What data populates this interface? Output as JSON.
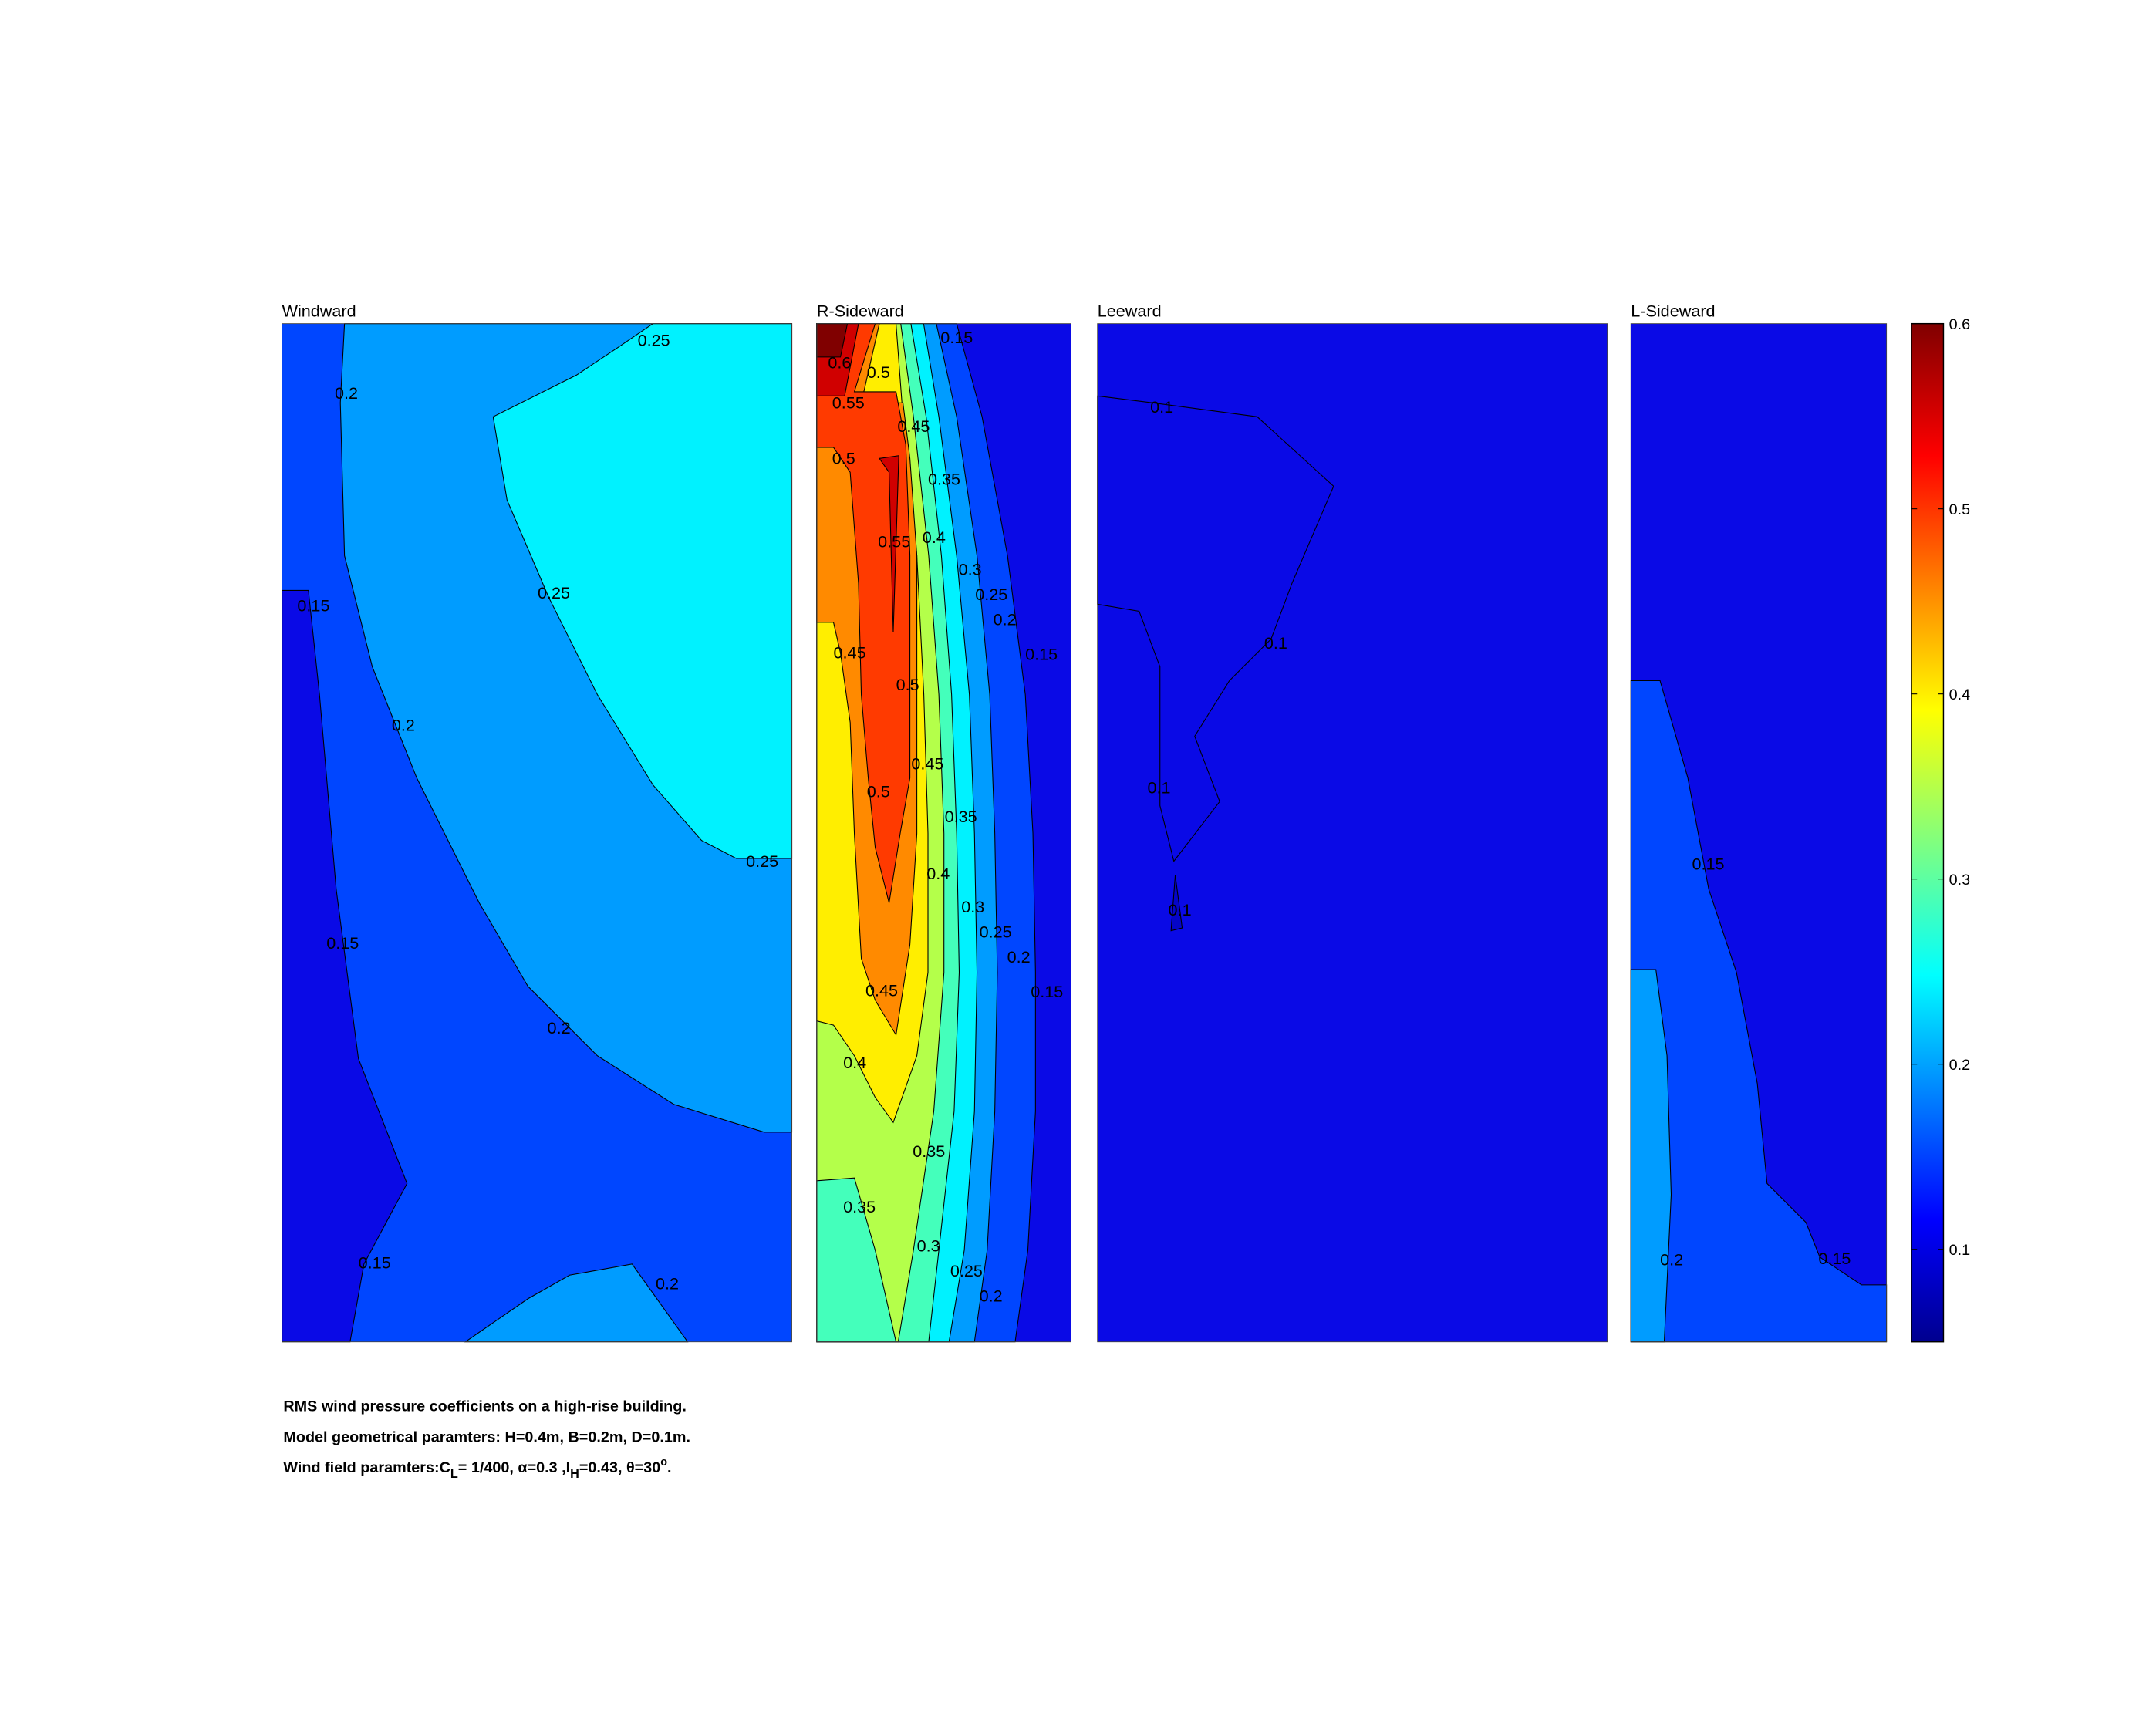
{
  "chart_data": {
    "type": "heatmap",
    "subtype": "filled-contour",
    "colormap": "jet",
    "colorbar": {
      "range": [
        0.05,
        0.6
      ],
      "ticks": [
        "0.1",
        "0.2",
        "0.3",
        "0.4",
        "0.5",
        "0.6"
      ],
      "placement": "right"
    },
    "levels": [
      0.1,
      0.15,
      0.2,
      0.25,
      0.3,
      0.35,
      0.4,
      0.45,
      0.5,
      0.55,
      0.6
    ],
    "level_colors": [
      "#0a0ae6",
      "#0046ff",
      "#009cff",
      "#00f2ff",
      "#44ffbb",
      "#b4ff4a",
      "#ffee00",
      "#ff8a00",
      "#ff3a00",
      "#d00000",
      "#800000"
    ],
    "panels": [
      {
        "title": "Windward",
        "contour_labels": [
          "0.25",
          "0.2",
          "0.25",
          "0.15",
          "0.2",
          "0.25",
          "0.15",
          "0.2",
          "0.15",
          "0.2"
        ]
      },
      {
        "title": "R-Sideward",
        "contour_labels": [
          "0.15",
          "0.6",
          "0.55",
          "0.5",
          "0.45",
          "0.5",
          "0.35",
          "0.55",
          "0.4",
          "0.3",
          "0.25",
          "0.2",
          "0.45",
          "0.15",
          "0.5",
          "0.45",
          "0.5",
          "0.35",
          "0.4",
          "0.3",
          "0.25",
          "0.2",
          "0.15",
          "0.45",
          "0.4",
          "0.35",
          "0.35",
          "0.3",
          "0.25",
          "0.2"
        ]
      },
      {
        "title": "Leeward",
        "contour_labels": [
          "0.1",
          "0.1",
          "0.1",
          "0.1"
        ]
      },
      {
        "title": "L-Sideward",
        "contour_labels": [
          "0.15",
          "0.2",
          "0.15"
        ]
      }
    ]
  },
  "caption": {
    "line1": "RMS wind pressure coefficients on a high-rise building.",
    "line2": "Model geometrical paramters: H=0.4m, B=0.2m, D=0.1m.",
    "line3_a": "Wind field paramters:C",
    "line3_sub_l": "L",
    "line3_b": "= 1/400, α=0.3 ,I",
    "line3_sub_h": "H",
    "line3_c": "=0.43, θ=30",
    "line3_sup": "o",
    "line3_d": "."
  }
}
